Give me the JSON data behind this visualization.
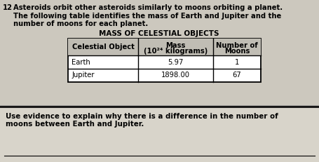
{
  "question_number": "12",
  "intro_text_line1": "Asteroids orbit other asteroids similarly to moons orbiting a planet.",
  "intro_text_line2": "The following table identifies the mass of Earth and Jupiter and the",
  "intro_text_line3": "number of moons for each planet.",
  "table_title": "MASS OF CELESTIAL OBJECTS",
  "header_col1": "Celestial Object",
  "header_col2a": "Mass",
  "header_col2b": "(10²⁴ kilograms)",
  "header_col3a": "Number of",
  "header_col3b": "Moons",
  "rows": [
    [
      "Earth",
      "5.97",
      "1"
    ],
    [
      "Jupiter",
      "1898.00",
      "67"
    ]
  ],
  "question_text_line1": "Use evidence to explain why there is a difference in the number of",
  "question_text_line2": "moons between Earth and Jupiter.",
  "bg_color": "#ccc8be",
  "answer_bg_color": "#d8d4ca",
  "table_header_bg": "#c0bdb4"
}
